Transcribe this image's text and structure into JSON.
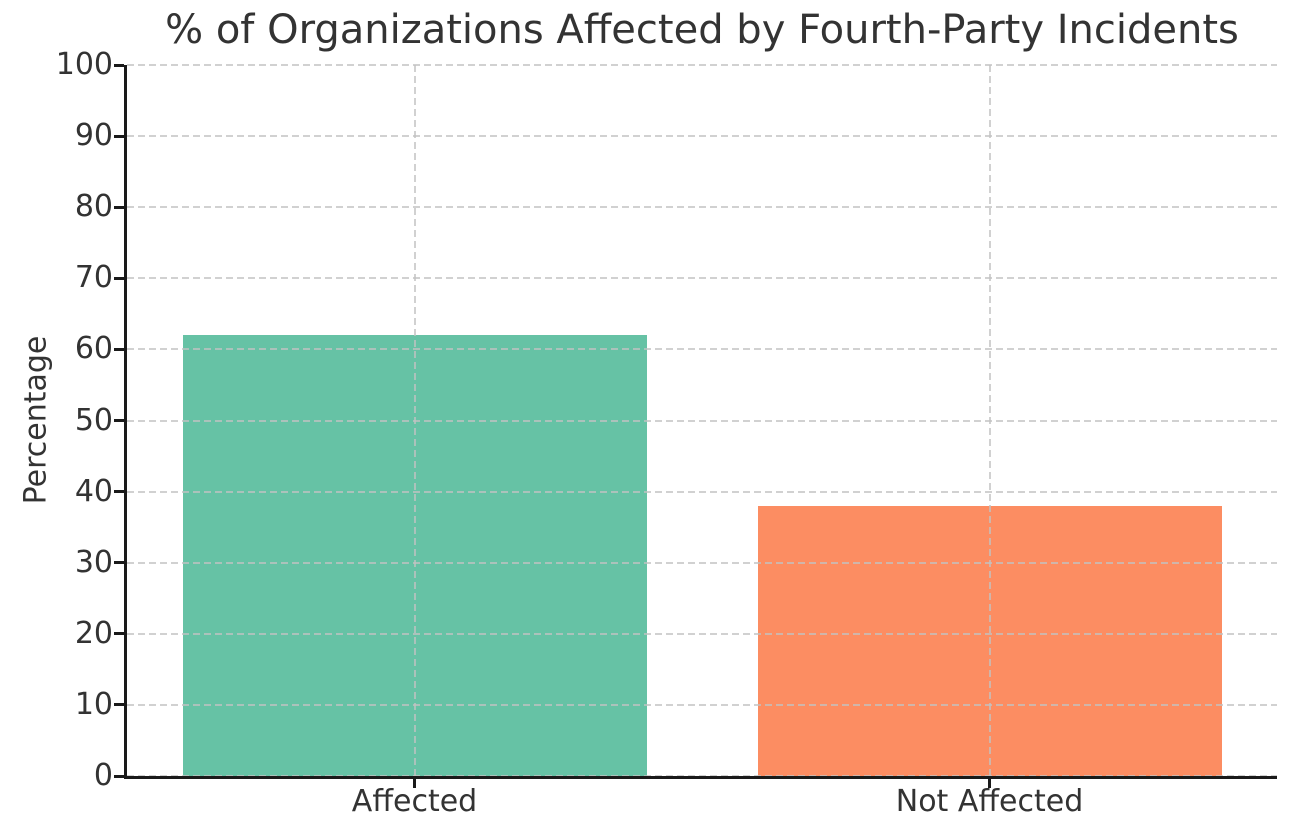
{
  "chart_data": {
    "type": "bar",
    "title": "% of Organizations Affected by Fourth-Party Incidents",
    "categories": [
      "Affected",
      "Not Affected"
    ],
    "values": [
      62,
      38
    ],
    "bar_colors": [
      "#66c2a5",
      "#fc8d62"
    ],
    "xlabel": "",
    "ylabel": "Percentage",
    "ylim": [
      0,
      100
    ],
    "ytick_step": 10,
    "yticks": [
      0,
      10,
      20,
      30,
      40,
      50,
      60,
      70,
      80,
      90,
      100
    ],
    "grid": "dashed horizontal lines at each y tick and dashed vertical lines at each bar center, drawn above bars",
    "legend": "none"
  },
  "style": {
    "text_color": "#333333",
    "axis_color": "#1a1a1a",
    "grid_color": "#c2c2c2",
    "background_color": "#ffffff"
  }
}
